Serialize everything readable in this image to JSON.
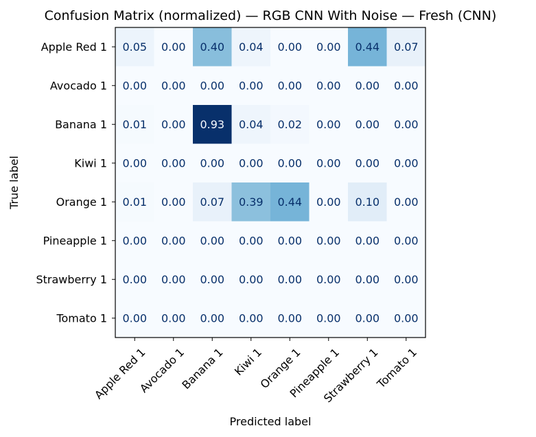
{
  "chart_data": {
    "type": "heatmap",
    "title": "Confusion Matrix (normalized) — RGB CNN With Noise — Fresh (CNN)",
    "xlabel": "Predicted label",
    "ylabel": "True label",
    "x_categories": [
      "Apple Red 1",
      "Avocado 1",
      "Banana 1",
      "Kiwi 1",
      "Orange 1",
      "Pineapple 1",
      "Strawberry 1",
      "Tomato 1"
    ],
    "y_categories": [
      "Apple Red 1",
      "Avocado 1",
      "Banana 1",
      "Kiwi 1",
      "Orange 1",
      "Pineapple 1",
      "Strawberry 1",
      "Tomato 1"
    ],
    "values": [
      [
        0.05,
        0.0,
        0.4,
        0.04,
        0.0,
        0.0,
        0.44,
        0.07
      ],
      [
        0.0,
        0.0,
        0.0,
        0.0,
        0.0,
        0.0,
        0.0,
        0.0
      ],
      [
        0.01,
        0.0,
        0.93,
        0.04,
        0.02,
        0.0,
        0.0,
        0.0
      ],
      [
        0.0,
        0.0,
        0.0,
        0.0,
        0.0,
        0.0,
        0.0,
        0.0
      ],
      [
        0.01,
        0.0,
        0.07,
        0.39,
        0.44,
        0.0,
        0.1,
        0.0
      ],
      [
        0.0,
        0.0,
        0.0,
        0.0,
        0.0,
        0.0,
        0.0,
        0.0
      ],
      [
        0.0,
        0.0,
        0.0,
        0.0,
        0.0,
        0.0,
        0.0,
        0.0
      ],
      [
        0.0,
        0.0,
        0.0,
        0.0,
        0.0,
        0.0,
        0.0,
        0.0
      ]
    ],
    "value_format": "2 decimals",
    "colormap": "Blues",
    "vmin": 0.0,
    "vmax": 0.93,
    "colorbar": false,
    "grid": false,
    "x_tick_rotation": "45 degrees"
  }
}
